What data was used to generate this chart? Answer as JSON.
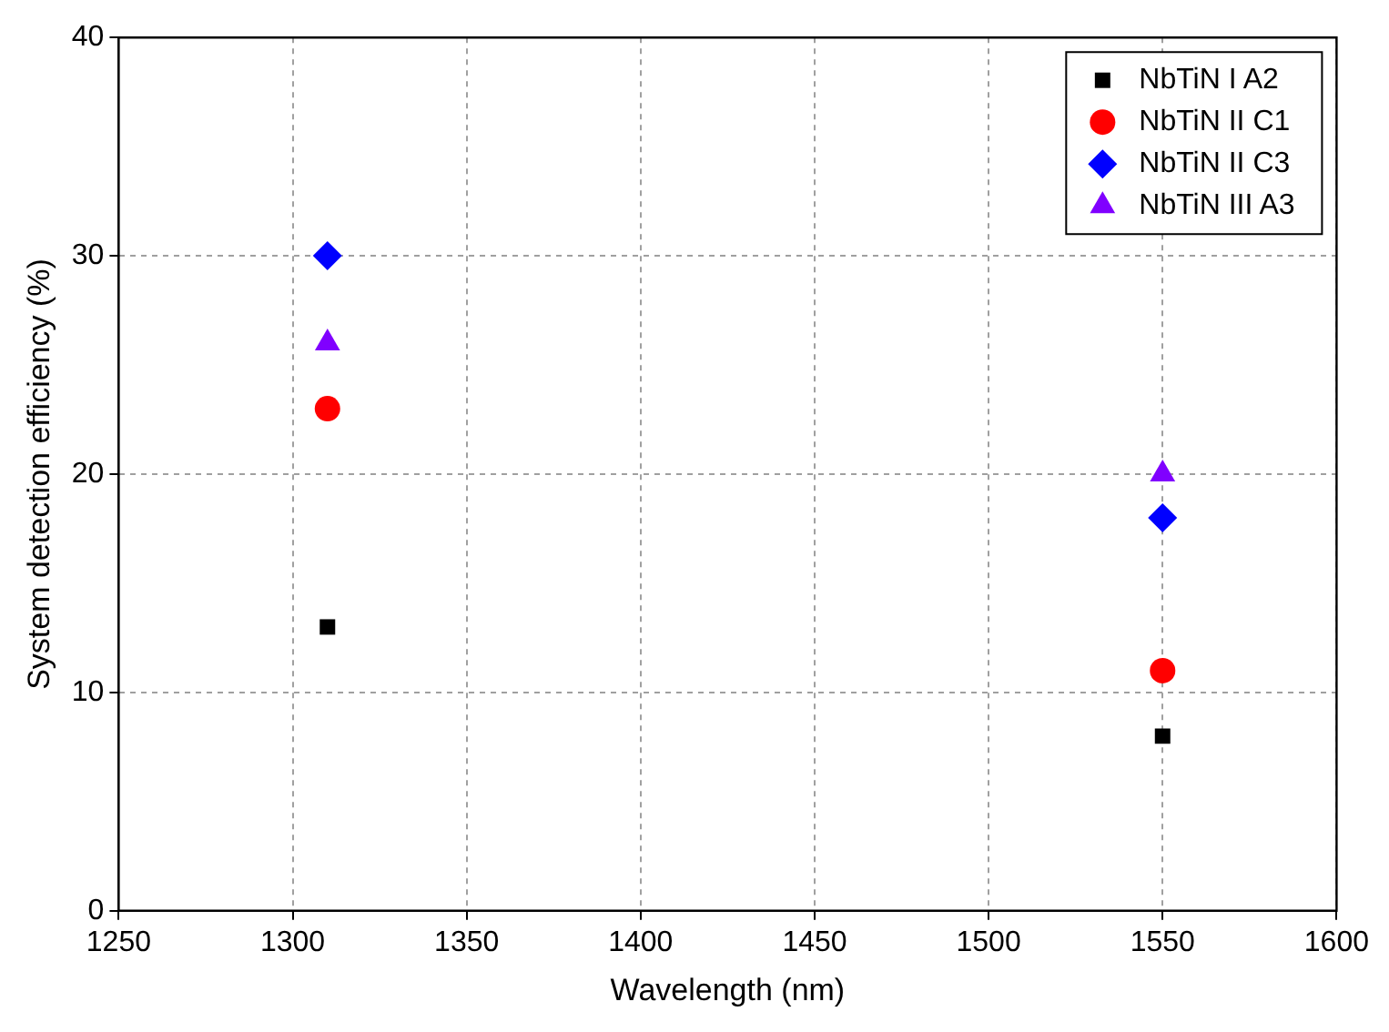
{
  "chart_data": {
    "type": "scatter",
    "xlabel": "Wavelength (nm)",
    "ylabel": "System detection efficiency (%)",
    "xlim": [
      1250,
      1600
    ],
    "xticks": [
      1250,
      1300,
      1350,
      1400,
      1450,
      1500,
      1550,
      1600
    ],
    "ylim": [
      0,
      40
    ],
    "yticks": [
      0,
      10,
      20,
      30,
      40
    ],
    "grid": true,
    "legend": "top right",
    "x": [
      1310,
      1550
    ],
    "series": [
      {
        "name": "NbTiN I A2",
        "color": "#000000",
        "marker": "square",
        "values": [
          13,
          8
        ]
      },
      {
        "name": "NbTiN II C1",
        "color": "#ff0000",
        "marker": "circle",
        "values": [
          23,
          11
        ]
      },
      {
        "name": "NbTiN II C3",
        "color": "#0000ff",
        "marker": "diamond",
        "values": [
          30,
          18
        ]
      },
      {
        "name": "NbTiN III A3",
        "color": "#8000ff",
        "marker": "triangle",
        "values": [
          26,
          20
        ]
      }
    ]
  }
}
